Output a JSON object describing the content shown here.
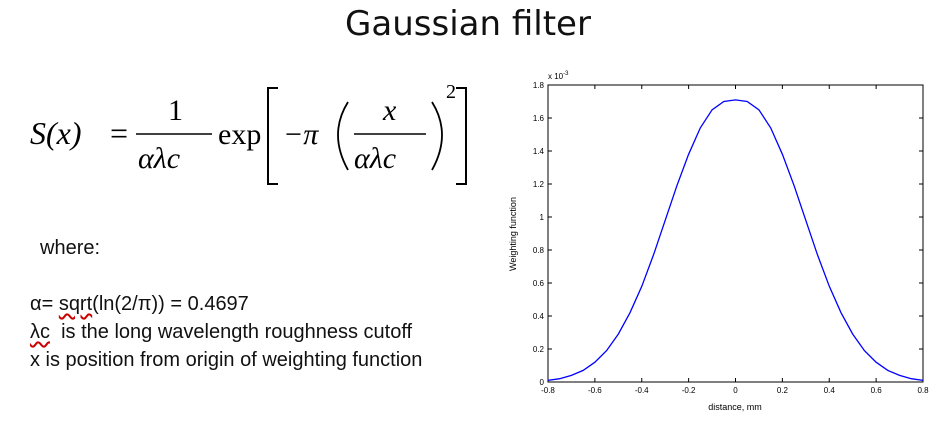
{
  "title": "Gaussian filter",
  "formula": {
    "lhs": "S(x)",
    "eq": "=",
    "numerator": "1",
    "denominator": "αλc",
    "exp": "exp",
    "neg_pi": "−π",
    "inner_num": "x",
    "inner_den": "αλc",
    "power": "2"
  },
  "notes": {
    "where": "where:",
    "alpha_prefix": "α= ",
    "alpha_func": "sqrt",
    "alpha_rest": "(ln(2/π)) = 0.4697",
    "lambda_symbol": "λc",
    "lambda_text": "  is the long wavelength roughness cutoff",
    "x_line": "x is position from origin of weighting function"
  },
  "chart_data": {
    "type": "line",
    "xlabel": "distance, mm",
    "ylabel": "Weighting function",
    "y_exponent_label": "x 10",
    "y_exponent_power": "-3",
    "xlim": [
      -0.8,
      0.8
    ],
    "ylim": [
      0,
      1.8
    ],
    "x_ticks": [
      -0.8,
      -0.6,
      -0.4,
      -0.2,
      0,
      0.2,
      0.4,
      0.6,
      0.8
    ],
    "x_tick_labels": [
      "-0.8",
      "-0.6",
      "-0.4",
      "-0.2",
      "0",
      "0.2",
      "0.4",
      "0.6",
      "0.8"
    ],
    "y_ticks": [
      0,
      0.2,
      0.4,
      0.6,
      0.8,
      1,
      1.2,
      1.4,
      1.6,
      1.8
    ],
    "y_tick_labels": [
      "0",
      "0.2",
      "0.4",
      "0.6",
      "0.8",
      "1",
      "1.2",
      "1.4",
      "1.6",
      "1.8"
    ],
    "grid": false,
    "line_color": "#0000ff",
    "series": [
      {
        "x": [
          -0.8,
          -0.75,
          -0.7,
          -0.65,
          -0.6,
          -0.55,
          -0.5,
          -0.45,
          -0.4,
          -0.35,
          -0.3,
          -0.25,
          -0.2,
          -0.15,
          -0.1,
          -0.05,
          0,
          0.05,
          0.1,
          0.15,
          0.2,
          0.25,
          0.3,
          0.35,
          0.4,
          0.45,
          0.5,
          0.55,
          0.6,
          0.65,
          0.7,
          0.75,
          0.8
        ],
        "y": [
          0.01,
          0.02,
          0.04,
          0.07,
          0.12,
          0.19,
          0.29,
          0.42,
          0.58,
          0.77,
          0.98,
          1.19,
          1.38,
          1.54,
          1.65,
          1.7,
          1.71,
          1.7,
          1.65,
          1.54,
          1.38,
          1.19,
          0.98,
          0.77,
          0.58,
          0.42,
          0.29,
          0.19,
          0.12,
          0.07,
          0.04,
          0.02,
          0.01
        ]
      }
    ]
  }
}
